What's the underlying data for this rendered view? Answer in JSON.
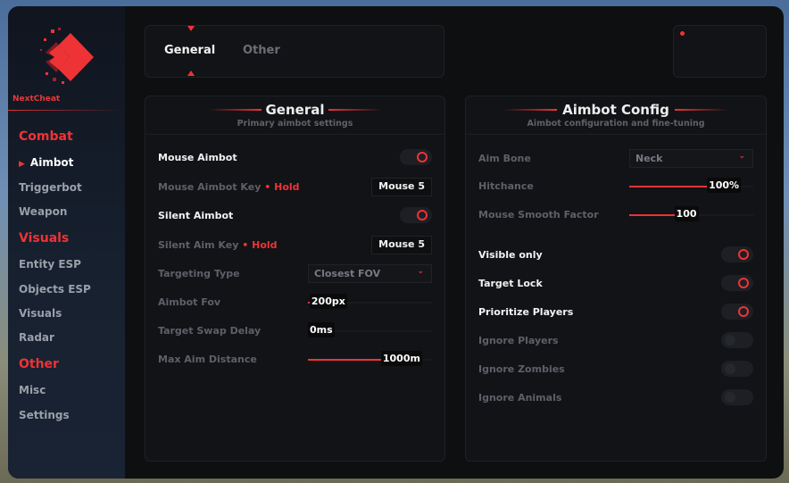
{
  "brand": {
    "name": "NextCheat",
    "accent": "#ee3336"
  },
  "sidebar": {
    "sections": [
      {
        "label": "Combat",
        "items": [
          {
            "label": "Aimbot",
            "active": true
          },
          {
            "label": "Triggerbot"
          },
          {
            "label": "Weapon"
          }
        ]
      },
      {
        "label": "Visuals",
        "items": [
          {
            "label": "Entity ESP"
          },
          {
            "label": "Objects ESP"
          },
          {
            "label": "Visuals"
          },
          {
            "label": "Radar"
          }
        ]
      },
      {
        "label": "Other",
        "items": [
          {
            "label": "Misc"
          },
          {
            "label": "Settings"
          }
        ]
      }
    ]
  },
  "tabs": [
    {
      "label": "General",
      "active": true
    },
    {
      "label": "Other"
    }
  ],
  "general": {
    "title": "General",
    "subtitle": "Primary aimbot settings",
    "mouse_aimbot": {
      "label": "Mouse Aimbot",
      "on": true
    },
    "mouse_key": {
      "label": "Mouse Aimbot Key",
      "mode": "Hold",
      "key": "Mouse 5"
    },
    "silent_aimbot": {
      "label": "Silent Aimbot",
      "on": true
    },
    "silent_key": {
      "label": "Silent Aim Key",
      "mode": "Hold",
      "key": "Mouse 5"
    },
    "targeting": {
      "label": "Targeting Type",
      "value": "Closest FOV"
    },
    "fov": {
      "label": "Aimbot Fov",
      "value": "200px",
      "fraction": 0.1
    },
    "swap": {
      "label": "Target Swap Delay",
      "value": "0ms",
      "fraction": 0
    },
    "distance": {
      "label": "Max Aim Distance",
      "value": "1000m",
      "fraction": 0.92
    }
  },
  "config": {
    "title": "Aimbot Config",
    "subtitle": "Aimbot configuration and fine-tuning",
    "bone": {
      "label": "Aim Bone",
      "value": "Neck"
    },
    "hitchance": {
      "label": "Hitchance",
      "value": "100%",
      "fraction": 0.9
    },
    "smooth": {
      "label": "Mouse Smooth Factor",
      "value": "100",
      "fraction": 0.45
    },
    "toggles": [
      {
        "label": "Visible only",
        "on": true
      },
      {
        "label": "Target Lock",
        "on": true
      },
      {
        "label": "Prioritize Players",
        "on": true
      },
      {
        "label": "Ignore Players",
        "on": false
      },
      {
        "label": "Ignore Zombies",
        "on": false
      },
      {
        "label": "Ignore Animals",
        "on": false
      }
    ]
  }
}
